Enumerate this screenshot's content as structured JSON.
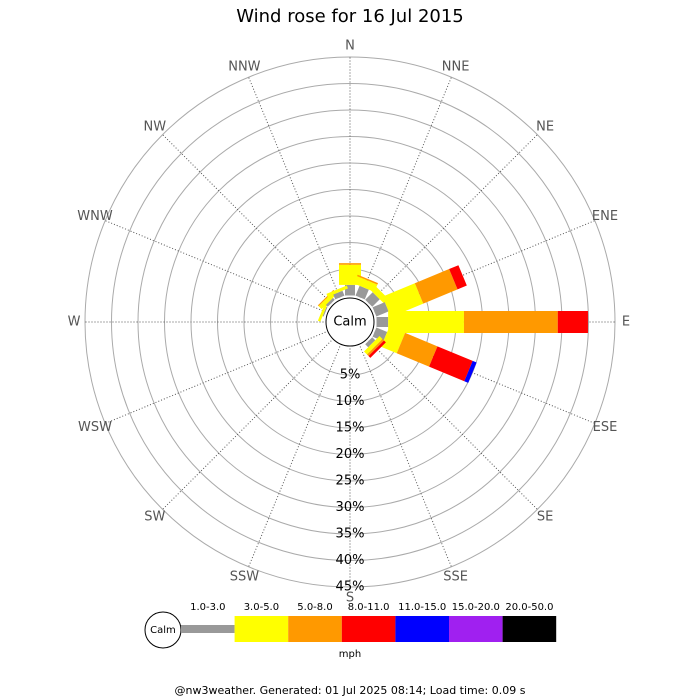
{
  "chart_data": {
    "type": "windrose",
    "title": "Wind rose for 16 Jul 2015",
    "directions": [
      "N",
      "NNE",
      "NE",
      "ENE",
      "E",
      "ESE",
      "SE",
      "SSE",
      "S",
      "SSW",
      "SW",
      "WSW",
      "W",
      "WNW",
      "NW",
      "NNW"
    ],
    "series": [
      {
        "name": "1.0-3.0",
        "color": "#999999",
        "values": [
          2.0,
          2.0,
          2.0,
          2.5,
          2.2,
          2.2,
          0.8,
          0,
          0,
          0,
          0,
          0,
          0,
          0.2,
          0.5,
          1.0
        ]
      },
      {
        "name": "3.0-5.0",
        "color": "#ffff00",
        "values": [
          3.8,
          1.5,
          1.2,
          6.6,
          14.3,
          3.2,
          0.8,
          0,
          0,
          0,
          0,
          0,
          0,
          0.5,
          0.8,
          0.6
        ]
      },
      {
        "name": "5.0-8.0",
        "color": "#ff9900",
        "values": [
          0.3,
          0.3,
          0,
          7.0,
          17.7,
          6.6,
          0.4,
          0,
          0,
          0,
          0,
          0,
          0,
          0,
          0.2,
          0
        ]
      },
      {
        "name": "8.0-11.0",
        "color": "#ff0000",
        "values": [
          0,
          0,
          0,
          1.9,
          5.7,
          7.2,
          0.5,
          0,
          0,
          0,
          0,
          0,
          0,
          0,
          0,
          0
        ]
      },
      {
        "name": "11.0-15.0",
        "color": "#0000ff",
        "values": [
          0,
          0,
          0,
          0,
          0,
          0.8,
          0,
          0,
          0,
          0,
          0,
          0,
          0,
          0,
          0,
          0
        ]
      },
      {
        "name": "15.0-20.0",
        "color": "#a020f0",
        "values": [
          0,
          0,
          0,
          0,
          0,
          0,
          0,
          0,
          0,
          0,
          0,
          0,
          0,
          0,
          0,
          0
        ]
      },
      {
        "name": "20.0-50.0",
        "color": "#000000",
        "values": [
          0,
          0,
          0,
          0,
          0,
          0,
          0,
          0,
          0,
          0,
          0,
          0,
          0,
          0,
          0,
          0
        ]
      }
    ],
    "rlim": [
      0,
      45
    ],
    "rticks": [
      {
        "value": 5,
        "label": "5%"
      },
      {
        "value": 10,
        "label": "10%"
      },
      {
        "value": 15,
        "label": "15%"
      },
      {
        "value": 20,
        "label": "20%"
      },
      {
        "value": 25,
        "label": "25%"
      },
      {
        "value": 30,
        "label": "30%"
      },
      {
        "value": 35,
        "label": "35%"
      },
      {
        "value": 40,
        "label": "40%"
      },
      {
        "value": 45,
        "label": "45%"
      }
    ],
    "calm_label": "Calm",
    "unit": "mph",
    "footer": "@nw3weather. Generated: 01 Jul 2025 08:14; Load time: 0.09 s"
  }
}
